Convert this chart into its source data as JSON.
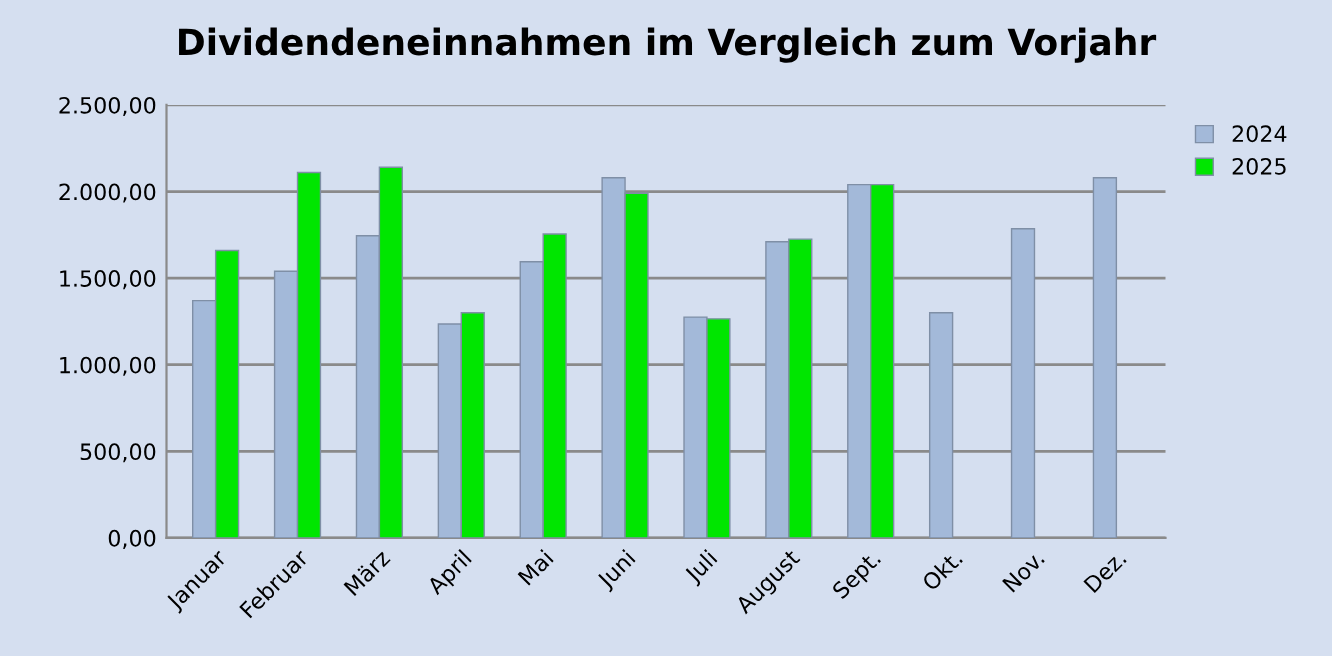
{
  "chart_data": {
    "type": "bar",
    "title": "Dividendeneinnahmen im Vergleich zum Vorjahr",
    "categories": [
      "Januar",
      "Februar",
      "März",
      "April",
      "Mai",
      "Juni",
      "Juli",
      "August",
      "Sept.",
      "Okt.",
      "Nov.",
      "Dez."
    ],
    "series": [
      {
        "name": "2024",
        "color": "#a3b9d9",
        "values": [
          1370,
          1540,
          1745,
          1235,
          1595,
          2080,
          1275,
          1710,
          2040,
          1300,
          1785,
          2080
        ]
      },
      {
        "name": "2025",
        "color": "#00e600",
        "values": [
          1660,
          2110,
          2140,
          1300,
          1755,
          1990,
          1265,
          1725,
          2040,
          null,
          null,
          null
        ]
      }
    ],
    "ylim": [
      0,
      2500
    ],
    "yticks": [
      {
        "value": 0,
        "label": "0,00"
      },
      {
        "value": 500,
        "label": "500,00"
      },
      {
        "value": 1000,
        "label": "1.000,00"
      },
      {
        "value": 1500,
        "label": "1.500,00"
      },
      {
        "value": 2000,
        "label": "2.000,00"
      },
      {
        "value": 2500,
        "label": "2.500,00"
      }
    ],
    "grid": "y",
    "legend": "top right"
  }
}
